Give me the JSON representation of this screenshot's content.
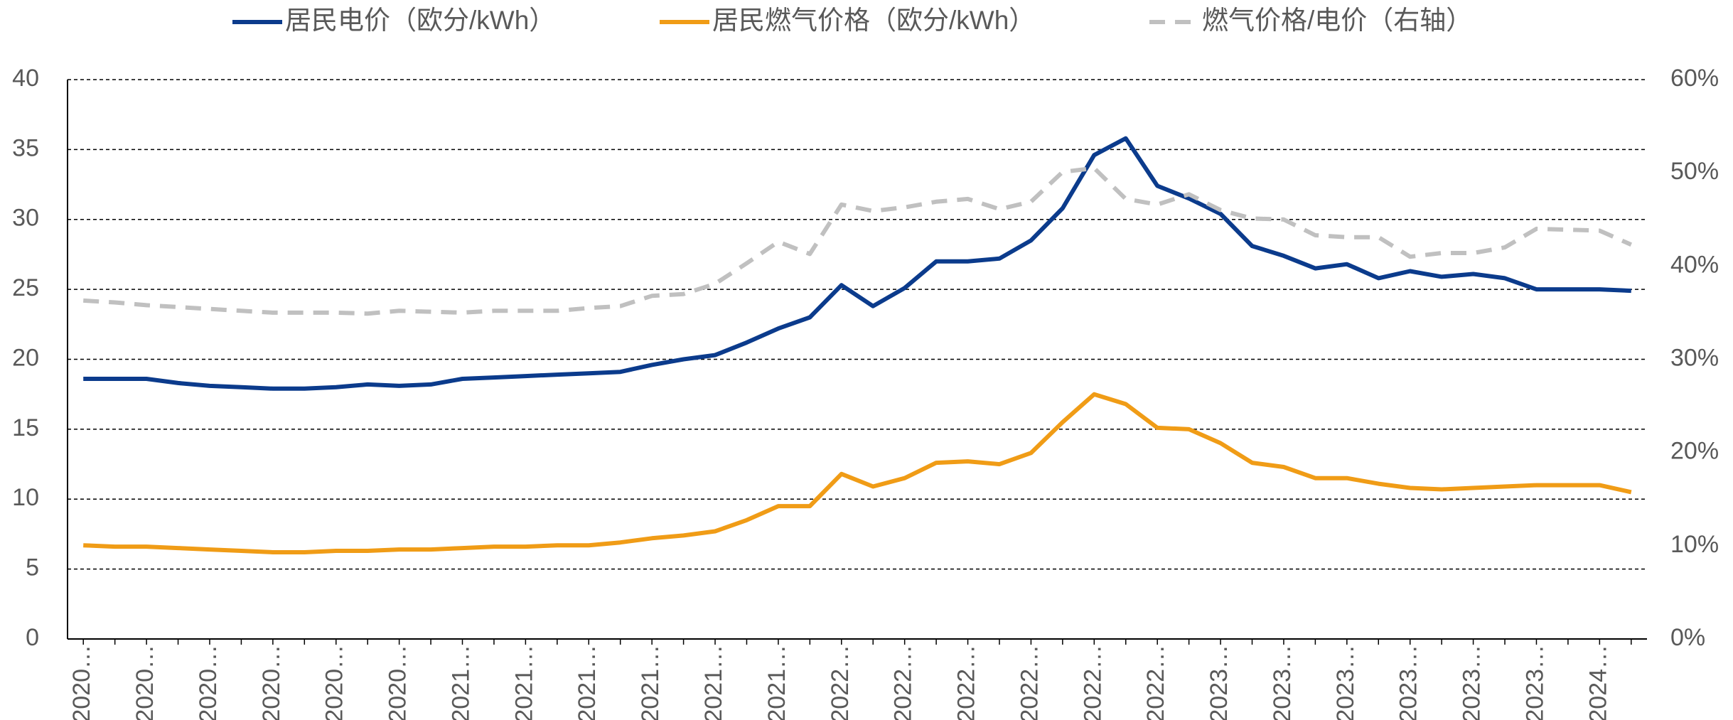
{
  "chart_data": {
    "type": "line",
    "categories": [
      "2020…",
      null,
      "2020…",
      null,
      "2020…",
      null,
      "2020…",
      null,
      "2020…",
      null,
      "2020…",
      null,
      "2021…",
      null,
      "2021…",
      null,
      "2021…",
      null,
      "2021…",
      null,
      "2021…",
      null,
      "2021…",
      null,
      "2022…",
      null,
      "2022…",
      null,
      "2022…",
      null,
      "2022…",
      null,
      "2022…",
      null,
      "2022…",
      null,
      "2023…",
      null,
      "2023…",
      null,
      "2023…",
      null,
      "2023…",
      null,
      "2023…",
      null,
      "2023…",
      null,
      "2024…",
      null
    ],
    "series": [
      {
        "name": "居民电价（欧分/kWh）",
        "color": "#0b3b8c",
        "values": [
          18.6,
          18.6,
          18.6,
          18.3,
          18.1,
          18.0,
          17.9,
          17.9,
          18.0,
          18.2,
          18.1,
          18.2,
          18.6,
          18.7,
          18.8,
          18.9,
          19.0,
          19.1,
          19.6,
          20.0,
          20.3,
          21.2,
          22.2,
          23.0,
          25.3,
          23.8,
          25.1,
          27.0,
          27.0,
          27.2,
          28.5,
          30.8,
          34.6,
          35.8,
          32.4,
          31.5,
          30.4,
          28.1,
          27.4,
          26.5,
          26.8,
          25.8,
          26.3,
          25.9,
          26.1,
          25.8,
          25.0,
          25.0,
          25.0,
          24.9
        ]
      },
      {
        "name": "居民燃气价格（欧分/kWh）",
        "color": "#f09c16",
        "values": [
          6.7,
          6.6,
          6.6,
          6.5,
          6.4,
          6.3,
          6.2,
          6.2,
          6.3,
          6.3,
          6.4,
          6.4,
          6.5,
          6.6,
          6.6,
          6.7,
          6.7,
          6.9,
          7.2,
          7.4,
          7.7,
          8.5,
          9.5,
          9.5,
          11.8,
          10.9,
          11.5,
          12.6,
          12.7,
          12.5,
          13.3,
          15.5,
          17.5,
          16.8,
          15.1,
          15.0,
          14.0,
          12.6,
          12.3,
          11.5,
          11.5,
          11.1,
          10.8,
          10.7,
          10.8,
          10.9,
          11.0,
          11.0,
          11.0,
          10.5
        ]
      },
      {
        "name": "燃气价格/电价（右轴）",
        "color": "#c0c0c0",
        "axis": "y2",
        "line_style": "dashed",
        "values": [
          36.3,
          36.1,
          35.8,
          35.6,
          35.4,
          35.2,
          35.0,
          35.0,
          35.0,
          34.9,
          35.2,
          35.1,
          35.0,
          35.2,
          35.2,
          35.2,
          35.5,
          35.7,
          36.8,
          37.0,
          38.1,
          40.3,
          42.6,
          41.3,
          46.6,
          45.9,
          46.3,
          46.9,
          47.2,
          46.1,
          46.9,
          50.1,
          50.5,
          47.2,
          46.6,
          47.7,
          46.0,
          45.1,
          45.0,
          43.3,
          43.1,
          43.1,
          41.0,
          41.4,
          41.4,
          42.0,
          44.0,
          43.9,
          43.8,
          42.3
        ]
      }
    ],
    "ylim": [
      0,
      40
    ],
    "yticks": [
      0,
      5,
      10,
      15,
      20,
      25,
      30,
      35,
      40
    ],
    "y2lim": [
      0,
      60
    ],
    "y2ticks": [
      {
        "value": 0,
        "label": "0%"
      },
      {
        "value": 10,
        "label": "10%"
      },
      {
        "value": 20,
        "label": "20%"
      },
      {
        "value": 30,
        "label": "30%"
      },
      {
        "value": 40,
        "label": "40%"
      },
      {
        "value": 50,
        "label": "50%"
      },
      {
        "value": 60,
        "label": "60%"
      }
    ],
    "grid": true,
    "legend": "top"
  }
}
